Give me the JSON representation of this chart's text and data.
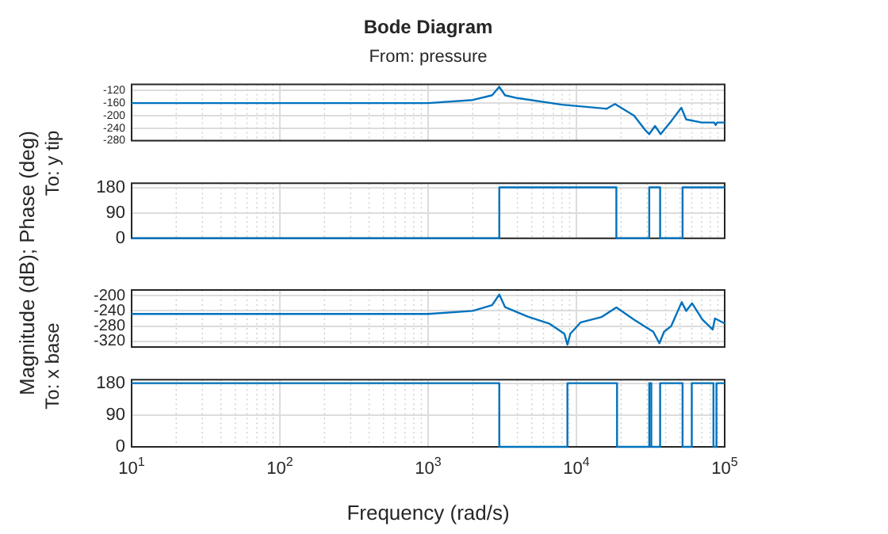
{
  "chart_data": [
    {
      "type": "line",
      "title": "Bode Diagram",
      "subtitle": "From: pressure",
      "ylabel": "To: y tip",
      "annotations": [
        "Magnitude (dB); Phase (deg)"
      ],
      "log": "x",
      "grid": true,
      "tick_labels": "y",
      "xlim": [
        10,
        100000
      ],
      "xticks": [
        10,
        100,
        1000,
        10000,
        100000
      ],
      "ylim": [
        -280,
        -100
      ],
      "yticks": [
        -120,
        -160,
        -200,
        -240,
        -280
      ],
      "series": [
        {
          "color": "#0072bd",
          "x": [
            10,
            1000,
            2000,
            2700,
            3020,
            3300,
            4000,
            8000,
            16000,
            18200,
            24500,
            29000,
            31000,
            33900,
            37000,
            44000,
            51000,
            55000,
            70000,
            85000,
            87000,
            89000,
            100000
          ],
          "values": [
            -160,
            -160,
            -150,
            -135,
            -108,
            -135,
            -144,
            -165,
            -178,
            -163,
            -200,
            -245,
            -259,
            -233,
            -259,
            -215,
            -175,
            -212,
            -222,
            -222,
            -230,
            -222,
            -222
          ]
        }
      ]
    },
    {
      "type": "step",
      "log": "x",
      "grid": true,
      "tick_labels": "y",
      "xlim": [
        10,
        100000
      ],
      "xticks": [
        10,
        100,
        1000,
        10000,
        100000
      ],
      "ylim": [
        0,
        195
      ],
      "yticks": [
        0,
        90,
        180
      ],
      "series": [
        {
          "color": "#0072bd",
          "x": [
            10,
            3020,
            18600,
            31000,
            36700,
            52000,
            100000
          ],
          "values": [
            0,
            180,
            0,
            180,
            0,
            180,
            180
          ]
        }
      ]
    },
    {
      "type": "line",
      "ylabel": "To: x base",
      "log": "x",
      "grid": true,
      "tick_labels": "y",
      "xlim": [
        10,
        100000
      ],
      "xticks": [
        10,
        100,
        1000,
        10000,
        100000
      ],
      "ylim": [
        -335,
        -185
      ],
      "yticks": [
        -200,
        -240,
        -280,
        -320
      ],
      "series": [
        {
          "color": "#0072bd",
          "x": [
            10,
            1000,
            2000,
            2700,
            3020,
            3300,
            4700,
            6600,
            8300,
            8700,
            9100,
            10700,
            14800,
            18600,
            24500,
            33000,
            36300,
            39000,
            43600,
            51300,
            55000,
            60300,
            70800,
            83000,
            86000,
            100000
          ],
          "values": [
            -248,
            -248,
            -240,
            -225,
            -197,
            -230,
            -255,
            -274,
            -300,
            -329,
            -300,
            -270,
            -256,
            -231,
            -263,
            -295,
            -325,
            -295,
            -280,
            -217,
            -240,
            -220,
            -263,
            -289,
            -260,
            -273
          ]
        }
      ]
    },
    {
      "type": "step",
      "xlabel": "Frequency (rad/s)",
      "log": "x",
      "grid": true,
      "xlim": [
        10,
        100000
      ],
      "xticks": [
        {
          "value": 10,
          "label": "10$^{1}$"
        },
        {
          "value": 100,
          "label": "10$^{2}$"
        },
        {
          "value": 1000,
          "label": "10$^{3}$"
        },
        {
          "value": 10000,
          "label": "10$^{4}$"
        },
        {
          "value": 100000,
          "label": "10$^{5}$"
        }
      ],
      "ylim": [
        0,
        190
      ],
      "yticks": [
        0,
        90,
        180
      ],
      "series": [
        {
          "color": "#0072bd",
          "x": [
            10,
            3020,
            8700,
            18800,
            31000,
            32000,
            36700,
            52000,
            60000,
            84000,
            88000,
            100000
          ],
          "values": [
            180,
            0,
            180,
            0,
            180,
            0,
            180,
            0,
            180,
            0,
            180,
            180
          ]
        }
      ]
    }
  ]
}
